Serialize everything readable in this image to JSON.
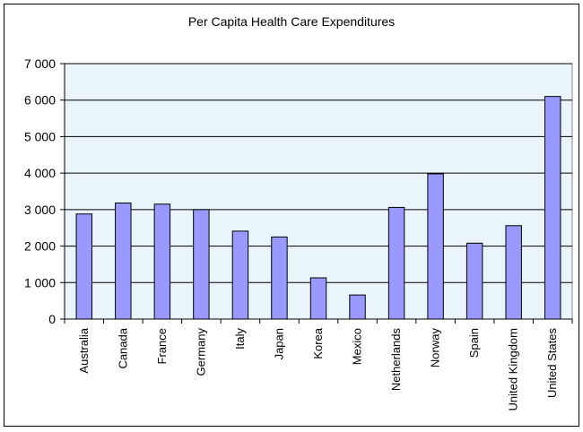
{
  "chart_data": {
    "type": "bar",
    "title": "Per Capita Health Care Expenditures",
    "categories": [
      "Australia",
      "Canada",
      "France",
      "Germany",
      "Italy",
      "Japan",
      "Korea",
      "Mexico",
      "Netherlands",
      "Norway",
      "Spain",
      "United Kingdom",
      "United States"
    ],
    "values": [
      2880,
      3180,
      3150,
      3000,
      2410,
      2250,
      1130,
      660,
      3060,
      3980,
      2080,
      2560,
      6100
    ],
    "ylim": [
      0,
      7000
    ],
    "yticks": [
      0,
      1000,
      2000,
      3000,
      4000,
      5000,
      6000,
      7000
    ],
    "ytick_labels": [
      "0",
      "1 000",
      "2 000",
      "3 000",
      "4 000",
      "5 000",
      "6 000",
      "7 000"
    ],
    "xlabel": "",
    "ylabel": "",
    "grid": true,
    "legend": "none",
    "colors": {
      "bar_fill": "#9999ff",
      "bar_stroke": "#000000",
      "plot_background": "#eaf4fb",
      "gridline": "#000000"
    }
  }
}
